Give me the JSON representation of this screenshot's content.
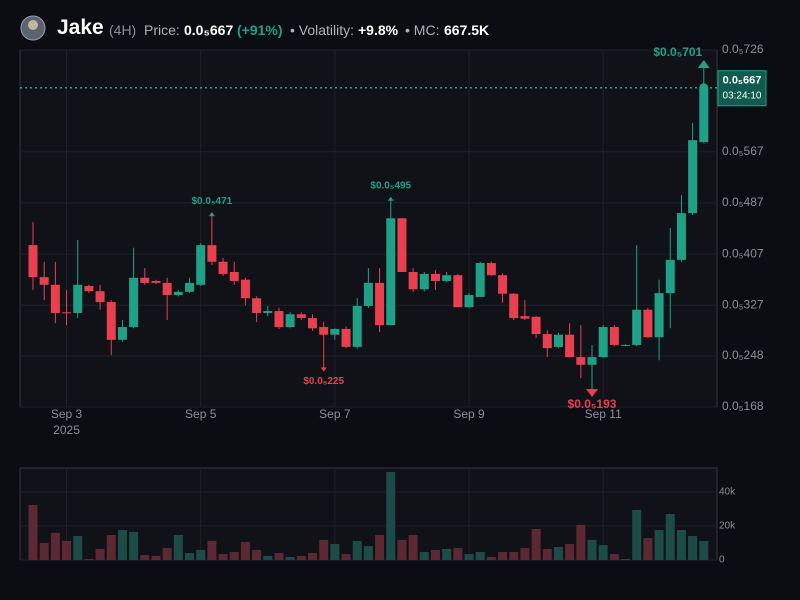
{
  "header": {
    "name": "Jake",
    "interval": "(4H)",
    "price_label": "Price:",
    "change": "(+91%)",
    "volatility_label": "• Volatility:",
    "volatility": "+9.8%",
    "mc_label": "• MC:",
    "mc": "667.5K"
  },
  "chart_data": {
    "type": "candlestick",
    "categories": [
      null,
      null,
      null,
      "Sep 3",
      null,
      null,
      null,
      null,
      null,
      null,
      null,
      null,
      null,
      null,
      null,
      "Sep 5",
      null,
      null,
      null,
      null,
      null,
      null,
      null,
      null,
      null,
      null,
      null,
      "Sep 7",
      null,
      null,
      null,
      null,
      null,
      null,
      null,
      null,
      null,
      null,
      null,
      "Sep 9",
      null,
      null,
      null,
      null,
      null,
      null,
      null,
      null,
      null,
      null,
      null,
      "Sep 11",
      null,
      null,
      null,
      null,
      null,
      null,
      null,
      null,
      null
    ],
    "x_year_label": "2025",
    "open": [
      4.21e-06,
      3.71e-06,
      3.59e-06,
      3.16e-06,
      3.15e-06,
      3.57e-06,
      3.49e-06,
      3.32e-06,
      2.73e-06,
      2.93e-06,
      3.7e-06,
      3.65e-06,
      3.62e-06,
      3.43e-06,
      3.48e-06,
      3.59e-06,
      4.21e-06,
      3.95e-06,
      3.79e-06,
      3.67e-06,
      3.38e-06,
      3.15e-06,
      3.18e-06,
      2.93e-06,
      3.13e-06,
      3.07e-06,
      2.93e-06,
      2.81e-06,
      2.9e-06,
      2.62e-06,
      3.26e-06,
      3.62e-06,
      2.96e-06,
      4.63e-06,
      3.79e-06,
      3.52e-06,
      3.76e-06,
      3.65e-06,
      3.74e-06,
      3.24e-06,
      3.4e-06,
      3.93e-06,
      3.74e-06,
      3.45e-06,
      3.1e-06,
      3.09e-06,
      2.82e-06,
      2.62e-06,
      2.81e-06,
      2.46e-06,
      2.34e-06,
      2.46e-06,
      2.93e-06,
      2.65e-06,
      2.65e-06,
      3.2e-06,
      2.77e-06,
      3.46e-06,
      3.98e-06,
      4.71e-06,
      5.82e-06
    ],
    "high": [
      4.57e-06,
      3.95e-06,
      3.95e-06,
      3.51e-06,
      4.29e-06,
      3.59e-06,
      3.59e-06,
      3.35e-06,
      3.04e-06,
      4.17e-06,
      3.85e-06,
      3.67e-06,
      3.7e-06,
      3.51e-06,
      3.7e-06,
      4.24e-06,
      4.71e-06,
      4.01e-06,
      3.95e-06,
      3.7e-06,
      3.41e-06,
      3.26e-06,
      3.23e-06,
      3.16e-06,
      3.16e-06,
      3.13e-06,
      3.01e-06,
      2.91e-06,
      2.94e-06,
      3.38e-06,
      3.85e-06,
      3.85e-06,
      4.95e-06,
      4.63e-06,
      3.85e-06,
      3.79e-06,
      3.82e-06,
      3.79e-06,
      3.76e-06,
      3.46e-06,
      3.95e-06,
      3.95e-06,
      3.77e-06,
      3.46e-06,
      3.35e-06,
      3.1e-06,
      2.88e-06,
      2.84e-06,
      2.99e-06,
      2.96e-06,
      2.65e-06,
      2.96e-06,
      2.96e-06,
      2.66e-06,
      4.21e-06,
      3.23e-06,
      3.67e-06,
      4.48e-06,
      4.99e-06,
      6.12e-06,
      7.01e-06
    ],
    "low": [
      3.51e-06,
      3.35e-06,
      2.99e-06,
      2.96e-06,
      3.07e-06,
      3.46e-06,
      3.2e-06,
      2.49e-06,
      2.7e-06,
      2.91e-06,
      3.59e-06,
      3.6e-06,
      3.04e-06,
      3.41e-06,
      3.46e-06,
      3.57e-06,
      3.9e-06,
      3.73e-06,
      3.59e-06,
      3.27e-06,
      3.01e-06,
      3.1e-06,
      2.9e-06,
      2.91e-06,
      3.04e-06,
      2.87e-06,
      2.25e-06,
      2.73e-06,
      2.6e-06,
      2.59e-06,
      3.23e-06,
      2.85e-06,
      2.96e-06,
      3.79e-06,
      3.48e-06,
      3.49e-06,
      3.51e-06,
      3.63e-06,
      3.24e-06,
      3.23e-06,
      3.4e-06,
      3.73e-06,
      3.31e-06,
      3.04e-06,
      3.04e-06,
      2.76e-06,
      2.46e-06,
      2.6e-06,
      2.45e-06,
      2.13e-06,
      1.93e-06,
      2.45e-06,
      2.63e-06,
      2.63e-06,
      2.63e-06,
      2.76e-06,
      2.41e-06,
      2.91e-06,
      3.95e-06,
      4.68e-06,
      5.8e-06
    ],
    "close": [
      3.71e-06,
      3.59e-06,
      3.15e-06,
      3.15e-06,
      3.59e-06,
      3.49e-06,
      3.32e-06,
      2.73e-06,
      2.93e-06,
      3.7e-06,
      3.62e-06,
      3.62e-06,
      3.43e-06,
      3.48e-06,
      3.62e-06,
      4.21e-06,
      3.95e-06,
      3.76e-06,
      3.65e-06,
      3.38e-06,
      3.15e-06,
      3.18e-06,
      2.93e-06,
      3.13e-06,
      3.07e-06,
      2.91e-06,
      2.81e-06,
      2.9e-06,
      2.62e-06,
      3.26e-06,
      3.62e-06,
      2.96e-06,
      4.63e-06,
      3.79e-06,
      3.52e-06,
      3.76e-06,
      3.65e-06,
      3.74e-06,
      3.24e-06,
      3.43e-06,
      3.93e-06,
      3.74e-06,
      3.45e-06,
      3.07e-06,
      3.06e-06,
      2.82e-06,
      2.6e-06,
      2.81e-06,
      2.46e-06,
      2.34e-06,
      2.46e-06,
      2.93e-06,
      2.65e-06,
      2.65e-06,
      3.2e-06,
      2.77e-06,
      3.46e-06,
      3.98e-06,
      4.71e-06,
      5.85e-06,
      6.67e-06
    ],
    "volume": [
      32300,
      10000,
      15900,
      11200,
      14100,
      600,
      6500,
      14700,
      17600,
      16500,
      2900,
      2400,
      7000,
      14700,
      4100,
      5900,
      11200,
      3500,
      4700,
      10600,
      5900,
      2400,
      4100,
      1800,
      2400,
      4100,
      11800,
      9400,
      3500,
      11200,
      8200,
      14700,
      51700,
      11800,
      14700,
      4700,
      5900,
      6500,
      7000,
      3500,
      4700,
      1800,
      4700,
      4700,
      7000,
      18200,
      6500,
      7600,
      9400,
      20600,
      11800,
      8800,
      3500,
      600,
      29400,
      12900,
      17600,
      27000,
      17600,
      14100,
      11200
    ],
    "up_color": "#1fa187",
    "down_color": "#e8404f",
    "volume_up_color": "#1d4b47",
    "volume_down_color": "#5c2831",
    "ylim": [
      1.68e-06,
      7.26e-06
    ],
    "yticks": [
      {
        "value": 1.68e-06,
        "label": "0.0₅168"
      },
      {
        "value": 2.48e-06,
        "label": "0.0₅248"
      },
      {
        "value": 3.27e-06,
        "label": "0.0₅327"
      },
      {
        "value": 4.07e-06,
        "label": "0.0₅407"
      },
      {
        "value": 4.87e-06,
        "label": "0.0₅487"
      },
      {
        "value": 5.67e-06,
        "label": "0.0₅567"
      },
      {
        "value": 7.26e-06,
        "label": "0.0₅726"
      }
    ],
    "volume_ylim": [
      0,
      54000
    ],
    "volume_yticks": [
      0,
      {
        "value": 20000,
        "label": "20k"
      },
      {
        "value": 40000,
        "label": "40k"
      }
    ],
    "grid": true,
    "current_price": {
      "value": 6.67e-06,
      "label": "0.0₅667"
    },
    "countdown": "03:24:10",
    "annotations": [
      {
        "label": "$0.0₅701",
        "value": 7.01e-06
      },
      {
        "label": "$0.0₅471",
        "value": 4.71e-06
      },
      {
        "label": "$0.0₅495",
        "value": 4.95e-06
      },
      {
        "label": "$0.0₅225",
        "value": 2.25e-06
      },
      {
        "label": "$0.0₅193",
        "value": 1.93e-06
      }
    ]
  }
}
